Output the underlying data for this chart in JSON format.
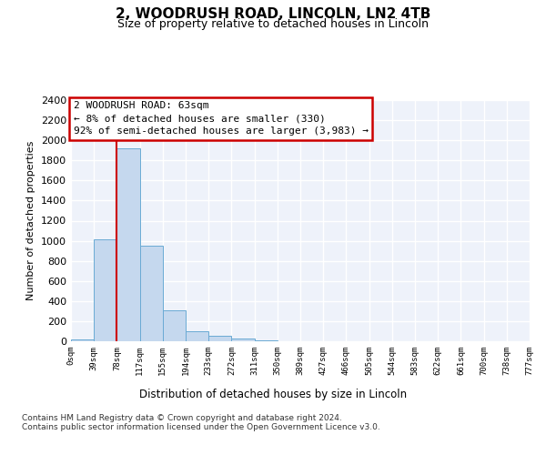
{
  "title": "2, WOODRUSH ROAD, LINCOLN, LN2 4TB",
  "subtitle": "Size of property relative to detached houses in Lincoln",
  "xlabel": "Distribution of detached houses by size in Lincoln",
  "ylabel": "Number of detached properties",
  "bar_values": [
    20,
    1010,
    1920,
    950,
    310,
    100,
    55,
    30,
    10,
    0,
    0,
    0,
    0,
    0,
    0,
    0,
    0,
    0,
    0,
    0
  ],
  "tick_labels": [
    "0sqm",
    "39sqm",
    "78sqm",
    "117sqm",
    "155sqm",
    "194sqm",
    "233sqm",
    "272sqm",
    "311sqm",
    "350sqm",
    "389sqm",
    "427sqm",
    "466sqm",
    "505sqm",
    "544sqm",
    "583sqm",
    "622sqm",
    "661sqm",
    "700sqm",
    "738sqm",
    "777sqm"
  ],
  "ylim": [
    0,
    2400
  ],
  "yticks": [
    0,
    200,
    400,
    600,
    800,
    1000,
    1200,
    1400,
    1600,
    1800,
    2000,
    2200,
    2400
  ],
  "bar_color": "#c5d8ee",
  "bar_edge_color": "#6aaad4",
  "property_line_x": 1.5,
  "property_line_color": "#cc0000",
  "annotation_text": "2 WOODRUSH ROAD: 63sqm\n← 8% of detached houses are smaller (330)\n92% of semi-detached houses are larger (3,983) →",
  "annotation_box_color": "#cc0000",
  "footer_text": "Contains HM Land Registry data © Crown copyright and database right 2024.\nContains public sector information licensed under the Open Government Licence v3.0.",
  "background_color": "#eef2fa",
  "grid_color": "#ffffff",
  "fig_bg_color": "#ffffff"
}
